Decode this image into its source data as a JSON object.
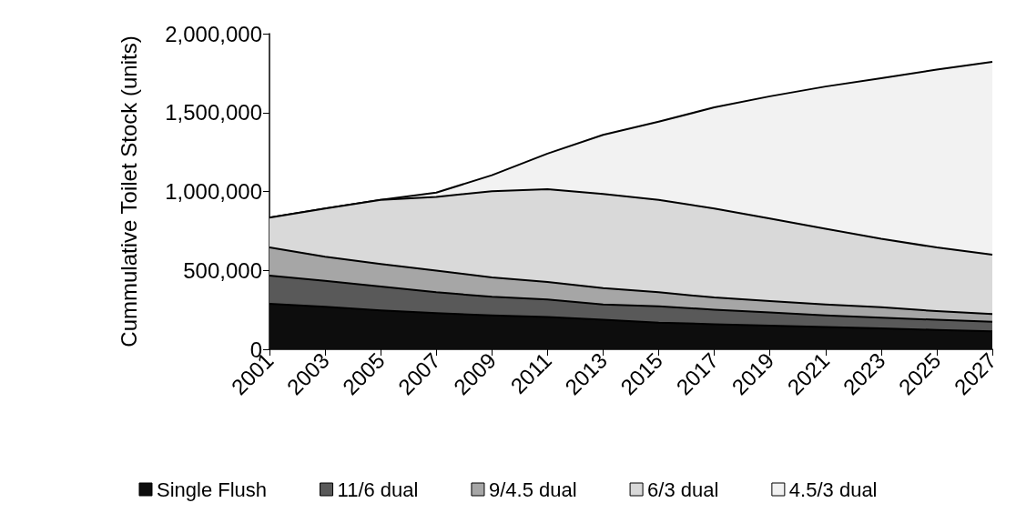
{
  "chart_data": {
    "type": "area",
    "stacked": true,
    "ylabel": "Cummulative Toilet Stock (units)",
    "x": [
      2001,
      2003,
      2005,
      2007,
      2009,
      2011,
      2013,
      2015,
      2017,
      2019,
      2021,
      2023,
      2025,
      2027
    ],
    "xlim": [
      2001,
      2027
    ],
    "xticks": [
      2001,
      2003,
      2005,
      2007,
      2009,
      2011,
      2013,
      2015,
      2017,
      2019,
      2021,
      2023,
      2025,
      2027
    ],
    "ylim": [
      0,
      2000000
    ],
    "yticks": [
      0,
      {
        "value": 500000,
        "label": "500,000"
      },
      {
        "value": 1000000,
        "label": "1,000,000"
      },
      {
        "value": 1500000,
        "label": "1,500,000"
      },
      {
        "value": 2000000,
        "label": "2,000,000"
      }
    ],
    "grid": false,
    "legend": "bottom",
    "marker": "none",
    "line_style": "solid",
    "series": [
      {
        "name": "Single Flush",
        "color": "#0d0d0d",
        "values": [
          288000,
          269000,
          247000,
          229000,
          214000,
          205000,
          187000,
          169000,
          159000,
          150000,
          141000,
          132000,
          123000,
          114000
        ]
      },
      {
        "name": "11/6 dual",
        "color": "#595959",
        "values": [
          179000,
          165000,
          151000,
          132000,
          119000,
          110000,
          97000,
          104000,
          92000,
          83000,
          73000,
          68000,
          64000,
          60000
        ]
      },
      {
        "name": "9/4.5 dual",
        "color": "#a6a6a6",
        "values": [
          178000,
          152000,
          142000,
          137000,
          123000,
          112000,
          104000,
          88000,
          77000,
          73000,
          70000,
          66000,
          55000,
          50000
        ]
      },
      {
        "name": "6/3 dual",
        "color": "#d9d9d9",
        "values": [
          189000,
          306000,
          407000,
          467000,
          546000,
          588000,
          596000,
          586000,
          564000,
          522000,
          480000,
          434000,
          403000,
          375000
        ]
      },
      {
        "name": "4.5/3 dual",
        "color": "#f2f2f2",
        "values": [
          0,
          0,
          0,
          28000,
          101000,
          225000,
          375000,
          495000,
          641000,
          775000,
          901000,
          1017000,
          1127000,
          1222000
        ]
      }
    ]
  }
}
